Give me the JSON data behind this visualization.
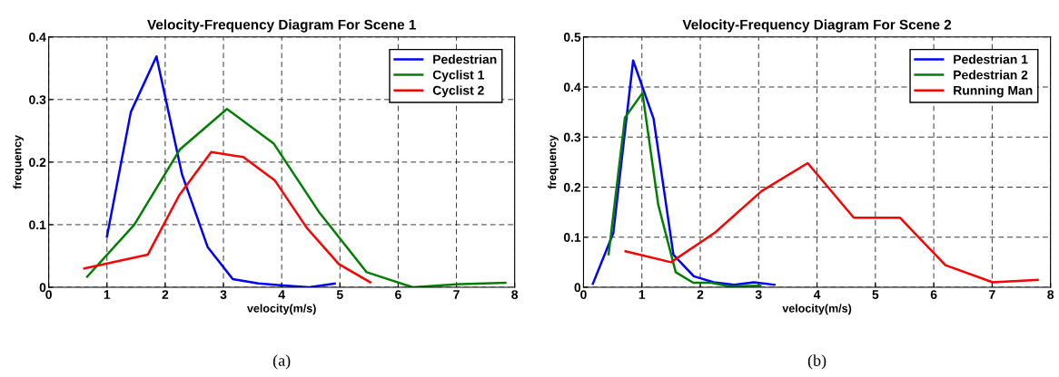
{
  "chart_data": [
    {
      "type": "line",
      "title": "Velocity-Frequency Diagram For Scene 1",
      "xlabel": "velocity(m/s)",
      "ylabel": "frequency",
      "xlim": [
        0,
        8
      ],
      "xticks": [
        0,
        1,
        2,
        3,
        4,
        5,
        6,
        7,
        8
      ],
      "ylim": [
        0,
        0.4
      ],
      "yticks": [
        0,
        0.1,
        0.2,
        0.3,
        0.4
      ],
      "grid": true,
      "legend": "top right",
      "annotations": [
        "(a)"
      ],
      "series": [
        {
          "name": "Pedestrian",
          "color": "#0000ff",
          "x": [
            1.0,
            1.41,
            1.85,
            2.29,
            2.73,
            3.16,
            3.6,
            4.03,
            4.47,
            4.91
          ],
          "values": [
            0.081,
            0.28,
            0.369,
            0.18,
            0.064,
            0.013,
            0.006,
            0.003,
            0.0,
            0.006
          ]
        },
        {
          "name": "Cyclist 1",
          "color": "#008000",
          "x": [
            0.66,
            1.47,
            2.25,
            3.06,
            3.86,
            4.65,
            5.46,
            6.25,
            7.05,
            7.84
          ],
          "values": [
            0.017,
            0.1,
            0.22,
            0.285,
            0.23,
            0.119,
            0.024,
            0.0,
            0.005,
            0.007
          ]
        },
        {
          "name": "Cyclist 2",
          "color": "#ff0000",
          "x": [
            0.61,
            1.7,
            2.24,
            2.79,
            3.34,
            3.88,
            4.43,
            4.98,
            5.52
          ],
          "values": [
            0.03,
            0.052,
            0.147,
            0.216,
            0.208,
            0.171,
            0.095,
            0.037,
            0.008
          ]
        }
      ]
    },
    {
      "type": "line",
      "title": "Velocity-Frequency Diagram For Scene 2",
      "xlabel": "velocity(m/s)",
      "ylabel": "frequency",
      "xlim": [
        0,
        8
      ],
      "xticks": [
        0,
        1,
        2,
        3,
        4,
        5,
        6,
        7,
        8
      ],
      "ylim": [
        0,
        0.5
      ],
      "yticks": [
        0,
        0.1,
        0.2,
        0.3,
        0.4,
        0.5
      ],
      "grid": true,
      "legend": "top right",
      "annotations": [
        "(b)"
      ],
      "series": [
        {
          "name": "Pedestrian 1",
          "color": "#0000ff",
          "x": [
            0.16,
            0.51,
            0.85,
            1.2,
            1.54,
            1.89,
            2.23,
            2.58,
            2.92,
            3.27
          ],
          "values": [
            0.007,
            0.108,
            0.453,
            0.337,
            0.065,
            0.022,
            0.01,
            0.005,
            0.01,
            0.005
          ]
        },
        {
          "name": "Pedestrian 2",
          "color": "#008000",
          "x": [
            0.43,
            0.71,
            1.01,
            1.28,
            1.58,
            1.88,
            2.19,
            2.49,
            3.03
          ],
          "values": [
            0.066,
            0.339,
            0.388,
            0.165,
            0.03,
            0.009,
            0.009,
            0.002,
            0.003
          ]
        },
        {
          "name": "Running Man",
          "color": "#ff0000",
          "x": [
            0.72,
            1.5,
            2.26,
            3.05,
            3.84,
            4.63,
            5.42,
            6.2,
            7.01,
            7.78
          ],
          "values": [
            0.072,
            0.05,
            0.11,
            0.192,
            0.248,
            0.139,
            0.139,
            0.044,
            0.01,
            0.015
          ]
        }
      ]
    }
  ]
}
